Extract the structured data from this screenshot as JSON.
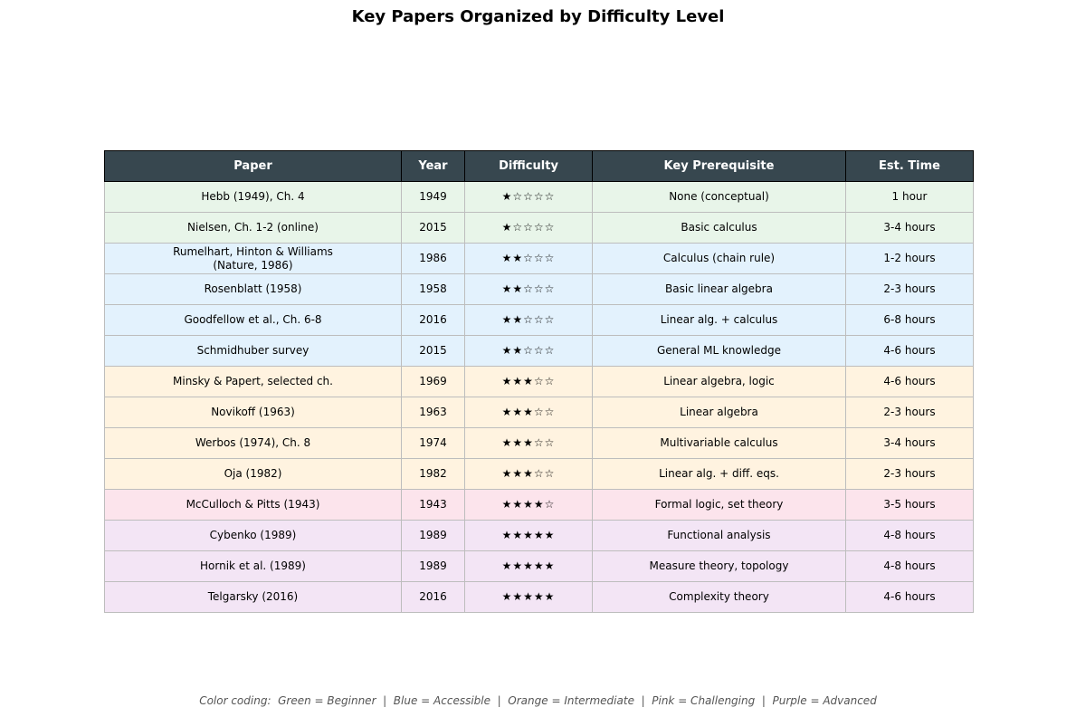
{
  "chart_data": {
    "type": "table",
    "title": "Key Papers Organized by Difficulty Level",
    "columns": [
      "Paper",
      "Year",
      "Difficulty",
      "Key Prerequisite",
      "Est. Time"
    ],
    "level_colors": {
      "Beginner": "#e8f5e9",
      "Accessible": "#e3f2fd",
      "Intermediate": "#fff3e0",
      "Challenging": "#fce4ec",
      "Advanced": "#f3e5f5"
    },
    "header_color": "#37474f",
    "rows": [
      {
        "paper": "Hebb (1949), Ch. 4",
        "year": "1949",
        "difficulty": "★☆☆☆☆",
        "prerequisite": "None (conceptual)",
        "time": "1 hour",
        "level": "Beginner"
      },
      {
        "paper": "Nielsen, Ch. 1-2 (online)",
        "year": "2015",
        "difficulty": "★☆☆☆☆",
        "prerequisite": "Basic calculus",
        "time": "3-4 hours",
        "level": "Beginner"
      },
      {
        "paper": "Rumelhart, Hinton & Williams\n(Nature, 1986)",
        "year": "1986",
        "difficulty": "★★☆☆☆",
        "prerequisite": "Calculus (chain rule)",
        "time": "1-2 hours",
        "level": "Accessible"
      },
      {
        "paper": "Rosenblatt (1958)",
        "year": "1958",
        "difficulty": "★★☆☆☆",
        "prerequisite": "Basic linear algebra",
        "time": "2-3 hours",
        "level": "Accessible"
      },
      {
        "paper": "Goodfellow et al., Ch. 6-8",
        "year": "2016",
        "difficulty": "★★☆☆☆",
        "prerequisite": "Linear alg. + calculus",
        "time": "6-8 hours",
        "level": "Accessible"
      },
      {
        "paper": "Schmidhuber survey",
        "year": "2015",
        "difficulty": "★★☆☆☆",
        "prerequisite": "General ML knowledge",
        "time": "4-6 hours",
        "level": "Accessible"
      },
      {
        "paper": "Minsky & Papert, selected ch.",
        "year": "1969",
        "difficulty": "★★★☆☆",
        "prerequisite": "Linear algebra, logic",
        "time": "4-6 hours",
        "level": "Intermediate"
      },
      {
        "paper": "Novikoff (1963)",
        "year": "1963",
        "difficulty": "★★★☆☆",
        "prerequisite": "Linear algebra",
        "time": "2-3 hours",
        "level": "Intermediate"
      },
      {
        "paper": "Werbos (1974), Ch. 8",
        "year": "1974",
        "difficulty": "★★★☆☆",
        "prerequisite": "Multivariable calculus",
        "time": "3-4 hours",
        "level": "Intermediate"
      },
      {
        "paper": "Oja (1982)",
        "year": "1982",
        "difficulty": "★★★☆☆",
        "prerequisite": "Linear alg. + diff. eqs.",
        "time": "2-3 hours",
        "level": "Intermediate"
      },
      {
        "paper": "McCulloch & Pitts (1943)",
        "year": "1943",
        "difficulty": "★★★★☆",
        "prerequisite": "Formal logic, set theory",
        "time": "3-5 hours",
        "level": "Challenging"
      },
      {
        "paper": "Cybenko (1989)",
        "year": "1989",
        "difficulty": "★★★★★",
        "prerequisite": "Functional analysis",
        "time": "4-8 hours",
        "level": "Advanced"
      },
      {
        "paper": "Hornik et al. (1989)",
        "year": "1989",
        "difficulty": "★★★★★",
        "prerequisite": "Measure theory, topology",
        "time": "4-8 hours",
        "level": "Advanced"
      },
      {
        "paper": "Telgarsky (2016)",
        "year": "2016",
        "difficulty": "★★★★★",
        "prerequisite": "Complexity theory",
        "time": "4-6 hours",
        "level": "Advanced"
      }
    ],
    "footer": "Color coding:  Green = Beginner  |  Blue = Accessible  |  Orange = Intermediate  |  Pink = Challenging  |  Purple = Advanced"
  }
}
